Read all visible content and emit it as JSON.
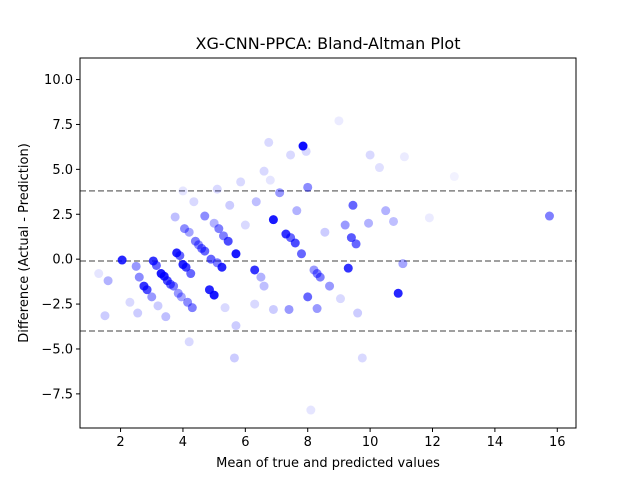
{
  "chart_data": {
    "type": "scatter",
    "title": "XG-CNN-PPCA: Bland-Altman Plot",
    "xlabel": "Mean of true and predicted values",
    "ylabel": "Difference (Actual - Prediction)",
    "xlim": [
      0.7,
      16.6
    ],
    "ylim": [
      -9.4,
      11.2
    ],
    "xticks": [
      2,
      4,
      6,
      8,
      10,
      12,
      14,
      16
    ],
    "xtick_labels": [
      "2",
      "4",
      "6",
      "8",
      "10",
      "12",
      "14",
      "16"
    ],
    "yticks": [
      -7.5,
      -5.0,
      -2.5,
      0.0,
      2.5,
      5.0,
      7.5,
      10.0
    ],
    "ytick_labels": [
      "−7.5",
      "−5.0",
      "−2.5",
      "0.0",
      "2.5",
      "5.0",
      "7.5",
      "10.0"
    ],
    "grid": false,
    "point_color": "#0000ff",
    "reference_line_color": "#808080",
    "reference_lines": [
      3.8,
      -0.1,
      -4.0
    ],
    "points": [
      {
        "x": 2.05,
        "y": -0.05,
        "a": 0.85
      },
      {
        "x": 1.6,
        "y": -1.2,
        "a": 0.3
      },
      {
        "x": 1.5,
        "y": -3.15,
        "a": 0.2
      },
      {
        "x": 1.3,
        "y": -0.8,
        "a": 0.1
      },
      {
        "x": 2.3,
        "y": -2.4,
        "a": 0.15
      },
      {
        "x": 2.5,
        "y": -0.4,
        "a": 0.4
      },
      {
        "x": 2.6,
        "y": -1.0,
        "a": 0.45
      },
      {
        "x": 2.55,
        "y": -3.0,
        "a": 0.2
      },
      {
        "x": 2.75,
        "y": -1.5,
        "a": 0.8
      },
      {
        "x": 2.85,
        "y": -1.7,
        "a": 0.7
      },
      {
        "x": 3.0,
        "y": -2.1,
        "a": 0.4
      },
      {
        "x": 3.05,
        "y": -0.1,
        "a": 0.8
      },
      {
        "x": 3.15,
        "y": -0.35,
        "a": 0.6
      },
      {
        "x": 3.2,
        "y": -2.6,
        "a": 0.2
      },
      {
        "x": 3.3,
        "y": -0.8,
        "a": 0.9
      },
      {
        "x": 3.4,
        "y": -0.95,
        "a": 0.85
      },
      {
        "x": 3.5,
        "y": -1.2,
        "a": 0.7
      },
      {
        "x": 3.6,
        "y": -1.4,
        "a": 0.6
      },
      {
        "x": 3.7,
        "y": -1.5,
        "a": 0.5
      },
      {
        "x": 3.45,
        "y": -3.2,
        "a": 0.25
      },
      {
        "x": 3.8,
        "y": 0.35,
        "a": 0.85
      },
      {
        "x": 3.9,
        "y": 0.2,
        "a": 0.6
      },
      {
        "x": 3.75,
        "y": 2.35,
        "a": 0.25
      },
      {
        "x": 3.85,
        "y": -1.9,
        "a": 0.4
      },
      {
        "x": 3.95,
        "y": -2.1,
        "a": 0.35
      },
      {
        "x": 4.0,
        "y": -0.3,
        "a": 0.85
      },
      {
        "x": 4.1,
        "y": -0.45,
        "a": 0.75
      },
      {
        "x": 4.05,
        "y": 1.7,
        "a": 0.45
      },
      {
        "x": 4.2,
        "y": 1.5,
        "a": 0.35
      },
      {
        "x": 4.15,
        "y": -2.4,
        "a": 0.45
      },
      {
        "x": 4.3,
        "y": -2.7,
        "a": 0.5
      },
      {
        "x": 4.25,
        "y": -0.8,
        "a": 0.6
      },
      {
        "x": 4.4,
        "y": 1.0,
        "a": 0.5
      },
      {
        "x": 4.5,
        "y": 0.8,
        "a": 0.45
      },
      {
        "x": 4.6,
        "y": 0.6,
        "a": 0.55
      },
      {
        "x": 4.7,
        "y": 0.45,
        "a": 0.6
      },
      {
        "x": 4.35,
        "y": 3.2,
        "a": 0.15
      },
      {
        "x": 4.2,
        "y": -4.6,
        "a": 0.15
      },
      {
        "x": 4.0,
        "y": 3.8,
        "a": 0.1
      },
      {
        "x": 4.7,
        "y": 2.4,
        "a": 0.45
      },
      {
        "x": 4.85,
        "y": -1.7,
        "a": 0.85
      },
      {
        "x": 5.0,
        "y": -2.0,
        "a": 0.9
      },
      {
        "x": 4.9,
        "y": 0.0,
        "a": 0.6
      },
      {
        "x": 5.1,
        "y": -0.2,
        "a": 0.5
      },
      {
        "x": 5.25,
        "y": -0.45,
        "a": 0.85
      },
      {
        "x": 5.0,
        "y": 2.0,
        "a": 0.3
      },
      {
        "x": 5.15,
        "y": 1.7,
        "a": 0.5
      },
      {
        "x": 5.3,
        "y": 1.3,
        "a": 0.5
      },
      {
        "x": 5.45,
        "y": 1.0,
        "a": 0.7
      },
      {
        "x": 5.7,
        "y": 0.3,
        "a": 0.9
      },
      {
        "x": 5.5,
        "y": 3.0,
        "a": 0.2
      },
      {
        "x": 5.1,
        "y": 3.9,
        "a": 0.15
      },
      {
        "x": 5.7,
        "y": -3.7,
        "a": 0.2
      },
      {
        "x": 5.65,
        "y": -5.5,
        "a": 0.2
      },
      {
        "x": 5.35,
        "y": -2.7,
        "a": 0.15
      },
      {
        "x": 5.85,
        "y": 4.3,
        "a": 0.15
      },
      {
        "x": 6.0,
        "y": 1.9,
        "a": 0.15
      },
      {
        "x": 6.3,
        "y": -0.6,
        "a": 0.8
      },
      {
        "x": 6.35,
        "y": 3.2,
        "a": 0.25
      },
      {
        "x": 6.5,
        "y": -1.0,
        "a": 0.3
      },
      {
        "x": 6.6,
        "y": -1.5,
        "a": 0.25
      },
      {
        "x": 6.6,
        "y": 4.9,
        "a": 0.15
      },
      {
        "x": 6.75,
        "y": 6.5,
        "a": 0.15
      },
      {
        "x": 6.8,
        "y": 4.4,
        "a": 0.1
      },
      {
        "x": 6.9,
        "y": 2.2,
        "a": 0.9
      },
      {
        "x": 6.9,
        "y": -2.8,
        "a": 0.2
      },
      {
        "x": 6.3,
        "y": -2.5,
        "a": 0.15
      },
      {
        "x": 7.1,
        "y": 3.7,
        "a": 0.4
      },
      {
        "x": 7.3,
        "y": 1.4,
        "a": 0.8
      },
      {
        "x": 7.45,
        "y": 1.2,
        "a": 0.6
      },
      {
        "x": 7.45,
        "y": 5.8,
        "a": 0.15
      },
      {
        "x": 7.4,
        "y": -2.8,
        "a": 0.4
      },
      {
        "x": 7.6,
        "y": 0.9,
        "a": 0.7
      },
      {
        "x": 7.65,
        "y": 2.7,
        "a": 0.3
      },
      {
        "x": 7.8,
        "y": 0.3,
        "a": 0.6
      },
      {
        "x": 7.85,
        "y": 6.3,
        "a": 0.95
      },
      {
        "x": 8.0,
        "y": 4.0,
        "a": 0.45
      },
      {
        "x": 8.0,
        "y": -2.1,
        "a": 0.6
      },
      {
        "x": 7.95,
        "y": 6.0,
        "a": 0.15
      },
      {
        "x": 8.1,
        "y": -8.4,
        "a": 0.1
      },
      {
        "x": 8.2,
        "y": -0.6,
        "a": 0.4
      },
      {
        "x": 8.3,
        "y": -0.8,
        "a": 0.5
      },
      {
        "x": 8.4,
        "y": -1.0,
        "a": 0.5
      },
      {
        "x": 8.3,
        "y": -2.75,
        "a": 0.4
      },
      {
        "x": 8.55,
        "y": 1.5,
        "a": 0.2
      },
      {
        "x": 8.7,
        "y": -1.5,
        "a": 0.4
      },
      {
        "x": 9.0,
        "y": 7.7,
        "a": 0.08
      },
      {
        "x": 9.05,
        "y": -2.2,
        "a": 0.15
      },
      {
        "x": 9.2,
        "y": 1.9,
        "a": 0.4
      },
      {
        "x": 9.3,
        "y": -0.5,
        "a": 0.8
      },
      {
        "x": 9.45,
        "y": 3.0,
        "a": 0.6
      },
      {
        "x": 9.4,
        "y": 1.2,
        "a": 0.65
      },
      {
        "x": 9.55,
        "y": 0.85,
        "a": 0.6
      },
      {
        "x": 9.6,
        "y": -3.0,
        "a": 0.2
      },
      {
        "x": 9.75,
        "y": -5.5,
        "a": 0.15
      },
      {
        "x": 9.95,
        "y": 2.0,
        "a": 0.3
      },
      {
        "x": 10.0,
        "y": 5.8,
        "a": 0.15
      },
      {
        "x": 10.3,
        "y": 5.1,
        "a": 0.12
      },
      {
        "x": 10.5,
        "y": 2.7,
        "a": 0.3
      },
      {
        "x": 10.75,
        "y": 2.1,
        "a": 0.25
      },
      {
        "x": 10.9,
        "y": -1.9,
        "a": 0.85
      },
      {
        "x": 11.05,
        "y": -0.25,
        "a": 0.35
      },
      {
        "x": 11.1,
        "y": 5.7,
        "a": 0.08
      },
      {
        "x": 11.9,
        "y": 2.3,
        "a": 0.08
      },
      {
        "x": 12.7,
        "y": 4.6,
        "a": 0.05
      },
      {
        "x": 15.75,
        "y": 2.4,
        "a": 0.5
      }
    ]
  }
}
